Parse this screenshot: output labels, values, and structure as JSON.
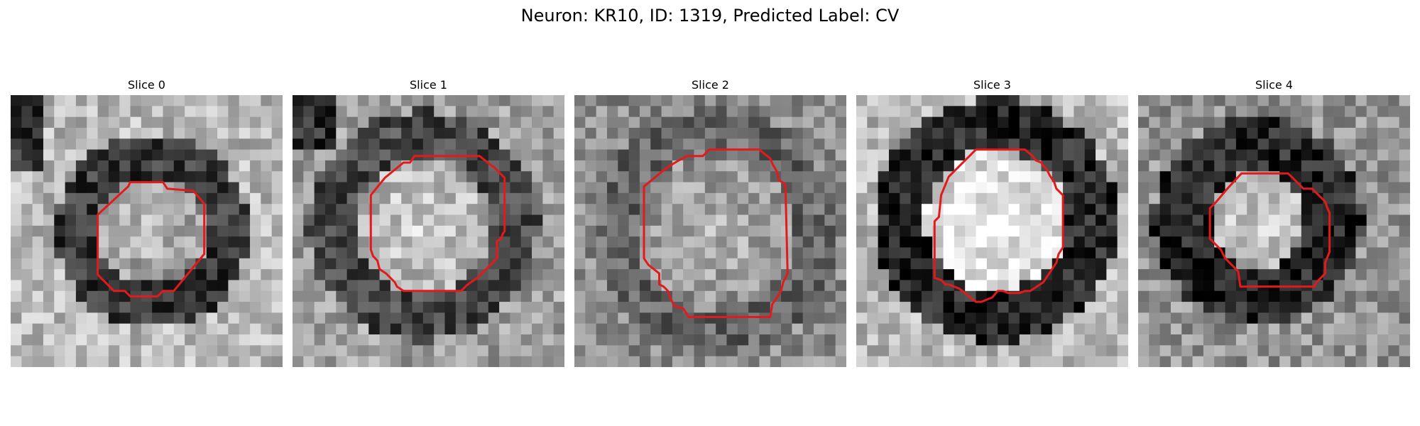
{
  "figure": {
    "title": "Neuron: KR10, ID: 1319, Predicted Label: CV"
  },
  "style": {
    "contour_color": "#e31a1c",
    "colormap": "gray"
  },
  "panels": [
    {
      "title": "Slice 0"
    },
    {
      "title": "Slice 1"
    },
    {
      "title": "Slice 2"
    },
    {
      "title": "Slice 3"
    },
    {
      "title": "Slice 4"
    }
  ]
}
